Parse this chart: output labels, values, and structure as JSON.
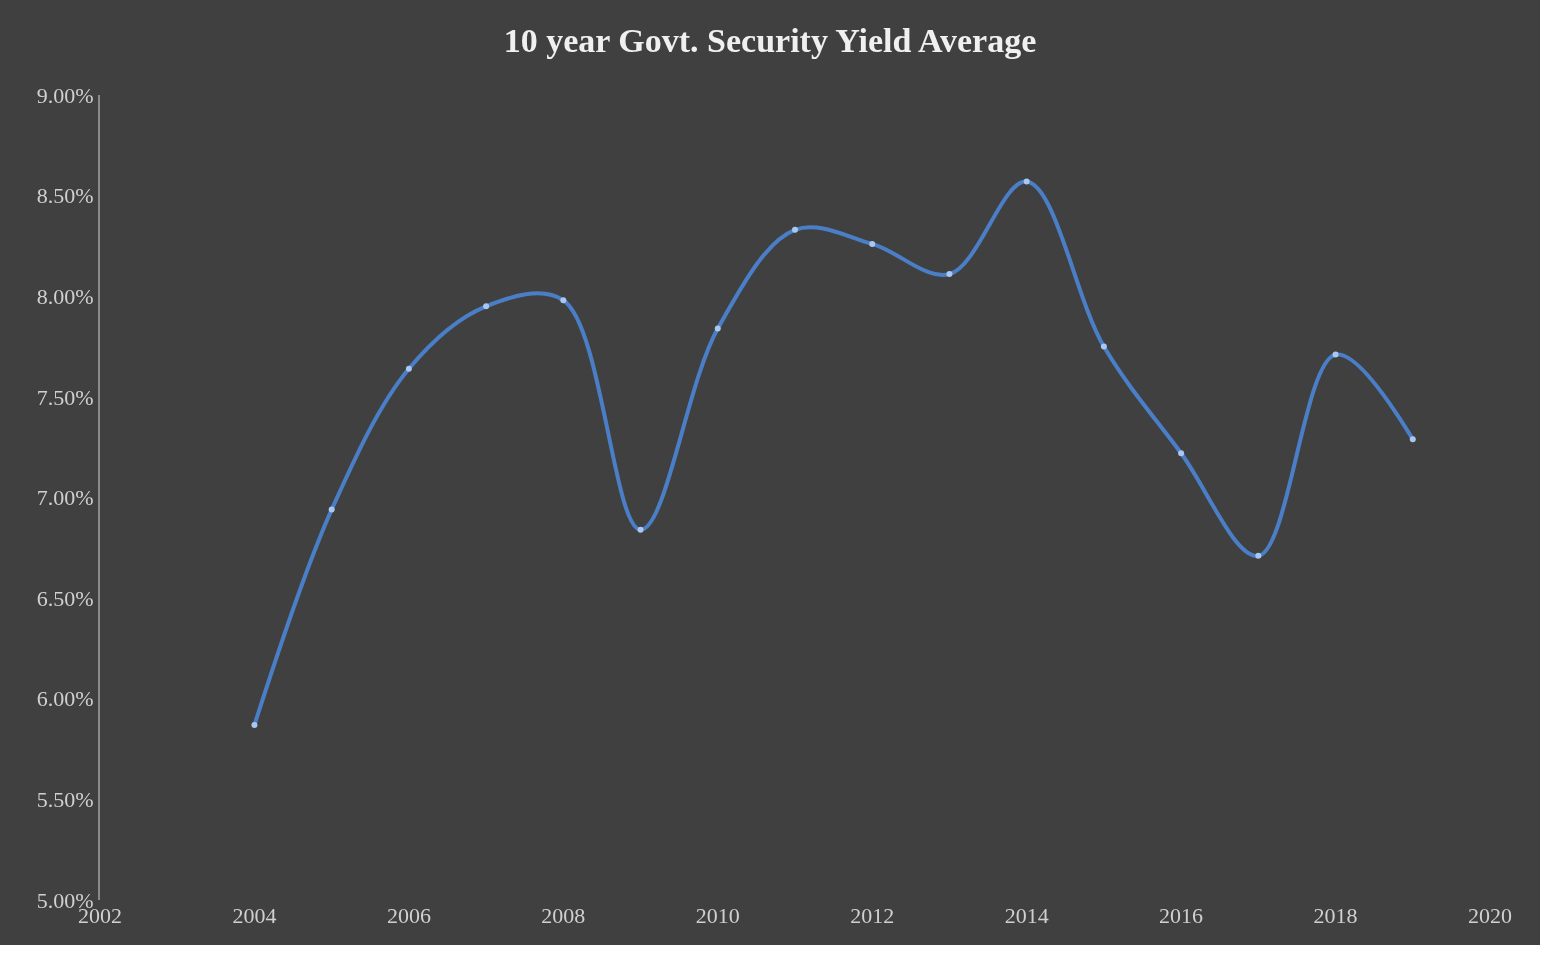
{
  "chart_data": {
    "type": "line",
    "title": "10 year Govt. Security Yield Average",
    "x": [
      2004,
      2005,
      2006,
      2007,
      2008,
      2009,
      2010,
      2011,
      2012,
      2013,
      2014,
      2015,
      2016,
      2017,
      2018,
      2019
    ],
    "series": [
      {
        "color": "#4a7fc8",
        "values": [
          5.87,
          6.94,
          7.64,
          7.95,
          7.98,
          6.84,
          7.84,
          8.33,
          8.26,
          8.11,
          8.57,
          7.75,
          7.22,
          6.71,
          7.71,
          7.29
        ]
      }
    ],
    "xlim": [
      2002,
      2020
    ],
    "xticks": [
      2002,
      2004,
      2006,
      2008,
      2010,
      2012,
      2014,
      2016,
      2018,
      2020
    ],
    "ylim": [
      5,
      9
    ],
    "yticks": [
      {
        "value": 5,
        "label": "5.00%"
      },
      {
        "value": 5.5,
        "label": "5.50%"
      },
      {
        "value": 6,
        "label": "6.00%"
      },
      {
        "value": 6.5,
        "label": "6.50%"
      },
      {
        "value": 7,
        "label": "7.00%"
      },
      {
        "value": 7.5,
        "label": "7.50%"
      },
      {
        "value": 8,
        "label": "8.00%"
      },
      {
        "value": 8.5,
        "label": "8.50%"
      },
      {
        "value": 9,
        "label": "9.00%"
      }
    ],
    "marker": "circle",
    "line_style": "solid"
  }
}
